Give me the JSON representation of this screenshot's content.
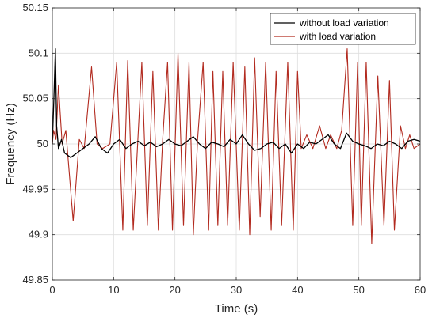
{
  "chart_data": {
    "type": "line",
    "title": "",
    "xlabel": "Time (s)",
    "ylabel": "Frequency (Hz)",
    "xlim": [
      0,
      60
    ],
    "ylim": [
      49.85,
      50.15
    ],
    "xticks": [
      0,
      10,
      20,
      30,
      40,
      50,
      60
    ],
    "yticks": [
      49.85,
      49.9,
      49.95,
      50,
      50.05,
      50.1,
      50.15
    ],
    "xtick_labels": [
      "0",
      "10",
      "20",
      "30",
      "40",
      "50",
      "60"
    ],
    "ytick_labels": [
      "49.85",
      "49.9",
      "49.95",
      "50",
      "50.05",
      "50.1",
      "50.15"
    ],
    "grid": true,
    "legend_position": "top-right",
    "series": [
      {
        "name": "without load variation",
        "color": "#000000",
        "x": [
          0,
          0.3,
          0.5,
          0.7,
          1.0,
          1.5,
          2.0,
          3.0,
          4.0,
          5.0,
          6.0,
          7.0,
          8.0,
          9.0,
          10.0,
          11.0,
          12.0,
          13.0,
          14.0,
          15.0,
          16.0,
          17.0,
          18.0,
          19.0,
          20.0,
          21.0,
          22.0,
          23.0,
          24.0,
          25.0,
          26.0,
          27.0,
          28.0,
          29.0,
          30.0,
          31.0,
          32.0,
          33.0,
          34.0,
          35.0,
          36.0,
          37.0,
          38.0,
          39.0,
          40.0,
          41.0,
          42.0,
          43.0,
          44.0,
          45.0,
          46.0,
          47.0,
          48.0,
          49.0,
          50.0,
          51.0,
          52.0,
          53.0,
          54.0,
          55.0,
          56.0,
          57.0,
          58.0,
          59.0,
          60.0
        ],
        "y": [
          50.0,
          50.06,
          50.105,
          50.02,
          49.995,
          50.005,
          49.99,
          49.985,
          49.99,
          49.995,
          50.0,
          50.008,
          49.995,
          49.99,
          50.0,
          50.005,
          49.995,
          50.0,
          50.003,
          49.998,
          50.002,
          49.997,
          50.0,
          50.005,
          50.0,
          49.998,
          50.003,
          50.008,
          50.0,
          49.995,
          50.002,
          50.0,
          49.997,
          50.005,
          50.0,
          50.01,
          50.0,
          49.993,
          49.995,
          50.0,
          50.002,
          49.995,
          50.0,
          49.99,
          50.0,
          49.995,
          50.002,
          50.0,
          50.005,
          50.01,
          50.0,
          49.995,
          50.012,
          50.003,
          50.0,
          49.998,
          49.995,
          50.0,
          49.998,
          50.003,
          50.0,
          49.995,
          50.003,
          50.005,
          50.003
        ]
      },
      {
        "name": "with load variation",
        "color": "#b22a1f",
        "x": [
          0,
          0.2,
          0.6,
          1.0,
          1.6,
          2.2,
          3.4,
          4.4,
          5.2,
          6.4,
          7.3,
          8.2,
          9.4,
          10.5,
          11.5,
          12.3,
          13.2,
          14.6,
          15.5,
          16.4,
          17.3,
          18.0,
          18.8,
          19.6,
          20.5,
          21.4,
          22.3,
          23.0,
          23.7,
          24.6,
          25.5,
          26.2,
          27.0,
          27.8,
          28.6,
          29.5,
          30.5,
          31.4,
          32.2,
          33.0,
          33.9,
          34.8,
          35.7,
          36.5,
          37.4,
          38.4,
          39.3,
          40.0,
          40.6,
          41.5,
          42.5,
          43.6,
          44.6,
          45.4,
          46.4,
          47.2,
          48.1,
          49.0,
          49.8,
          50.4,
          51.2,
          52.1,
          53.1,
          54.1,
          55.0,
          55.8,
          56.8,
          57.6,
          58.3,
          59.0,
          60.0
        ],
        "y": [
          50.0,
          50.015,
          50.005,
          50.065,
          50.0,
          50.015,
          49.915,
          50.005,
          49.995,
          50.085,
          50.0,
          49.995,
          50.0,
          50.09,
          49.905,
          50.092,
          49.905,
          50.09,
          49.91,
          50.08,
          49.905,
          50.005,
          50.09,
          49.905,
          50.1,
          49.91,
          50.09,
          49.9,
          50.005,
          50.09,
          49.905,
          50.08,
          49.91,
          50.08,
          49.91,
          50.09,
          49.905,
          50.085,
          49.9,
          50.095,
          49.92,
          50.09,
          49.905,
          50.08,
          49.91,
          50.09,
          49.905,
          50.08,
          49.995,
          50.01,
          49.995,
          50.02,
          49.995,
          50.01,
          49.995,
          50.015,
          50.105,
          49.91,
          50.09,
          49.91,
          50.09,
          49.89,
          50.075,
          49.91,
          50.07,
          49.905,
          50.02,
          49.995,
          50.01,
          49.995,
          50.0
        ]
      }
    ]
  }
}
